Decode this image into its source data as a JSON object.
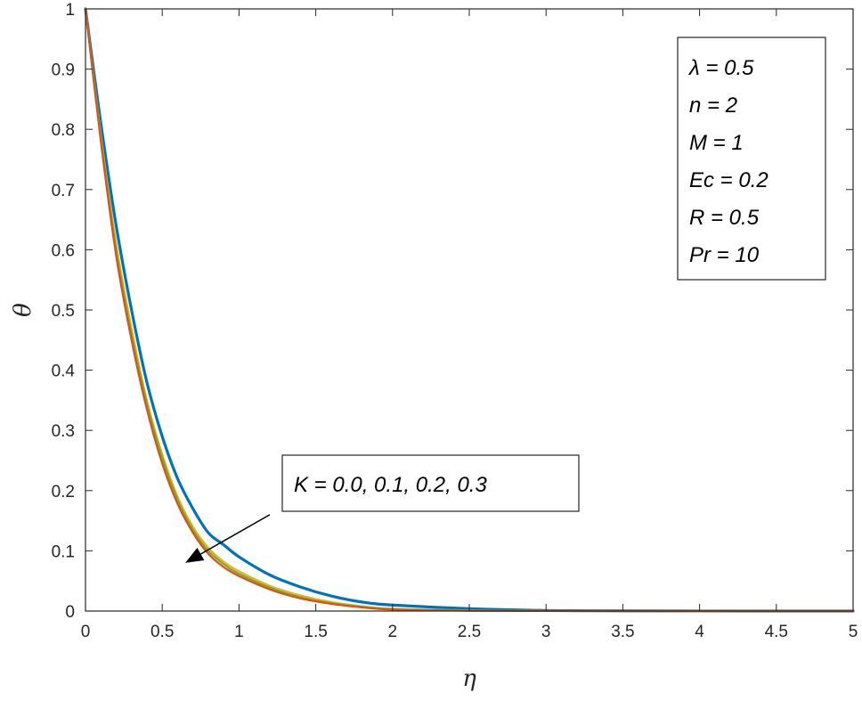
{
  "chart_data": {
    "type": "line",
    "xlabel": "η",
    "ylabel": "θ",
    "xlim": [
      0,
      5
    ],
    "ylim": [
      0,
      1
    ],
    "xticks": [
      0,
      0.5,
      1,
      1.5,
      2,
      2.5,
      3,
      3.5,
      4,
      4.5,
      5
    ],
    "yticks": [
      0,
      0.1,
      0.2,
      0.3,
      0.4,
      0.5,
      0.6,
      0.7,
      0.8,
      0.9,
      1
    ],
    "grid": false,
    "parameters_box": {
      "position": "top-right",
      "lines": [
        "λ = 0.5",
        "n = 2",
        "M = 1",
        "Ec = 0.2",
        "R = 0.5",
        "Pr = 10"
      ]
    },
    "annotation": {
      "text": "K = 0.0, 0.1, 0.2, 0.3",
      "arrow_from": [
        1.2,
        0.16
      ],
      "arrow_to": [
        0.65,
        0.08
      ]
    },
    "series": [
      {
        "color": "#0072BD",
        "x": [
          0,
          0.1,
          0.2,
          0.3,
          0.4,
          0.5,
          0.6,
          0.7,
          0.8,
          0.9,
          1.0,
          1.2,
          1.4,
          1.6,
          1.8,
          2.0,
          2.5,
          3.0,
          3.5,
          4.0,
          4.5,
          5.0
        ],
        "y": [
          1.0,
          0.81,
          0.64,
          0.5,
          0.38,
          0.29,
          0.22,
          0.17,
          0.13,
          0.11,
          0.09,
          0.06,
          0.04,
          0.025,
          0.015,
          0.01,
          0.004,
          0.001,
          0.0004,
          0.0001,
          3e-05,
          0.0
        ]
      },
      {
        "color": "#EDB120",
        "x": [
          0,
          0.1,
          0.2,
          0.3,
          0.4,
          0.5,
          0.6,
          0.7,
          0.8,
          0.9,
          1.0,
          1.2,
          1.4,
          1.6,
          1.8,
          2.0,
          2.5,
          3.0,
          3.5,
          4.0,
          4.5,
          5.0
        ],
        "y": [
          1.0,
          0.79,
          0.61,
          0.47,
          0.35,
          0.26,
          0.19,
          0.14,
          0.105,
          0.082,
          0.066,
          0.042,
          0.026,
          0.015,
          0.008,
          0.004,
          0.001,
          0.0003,
          0.0001,
          3e-05,
          1e-05,
          0.0
        ]
      },
      {
        "color": "#77AC30",
        "x": [
          0,
          0.1,
          0.2,
          0.3,
          0.4,
          0.5,
          0.6,
          0.7,
          0.8,
          0.9,
          1.0,
          1.2,
          1.4,
          1.6,
          1.8,
          2.0,
          2.5,
          3.0,
          3.5,
          4.0,
          4.5,
          5.0
        ],
        "y": [
          1.0,
          0.785,
          0.6,
          0.46,
          0.345,
          0.255,
          0.185,
          0.135,
          0.1,
          0.078,
          0.062,
          0.039,
          0.023,
          0.013,
          0.007,
          0.003,
          0.0008,
          0.0002,
          0.0001,
          2e-05,
          1e-05,
          0.0
        ]
      },
      {
        "color": "#D95319",
        "x": [
          0,
          0.1,
          0.2,
          0.3,
          0.4,
          0.5,
          0.6,
          0.7,
          0.8,
          0.9,
          1.0,
          1.2,
          1.4,
          1.6,
          1.8,
          2.0,
          2.5,
          3.0,
          3.5,
          4.0,
          4.5,
          5.0
        ],
        "y": [
          1.0,
          0.78,
          0.59,
          0.45,
          0.335,
          0.245,
          0.178,
          0.13,
          0.095,
          0.073,
          0.058,
          0.036,
          0.021,
          0.012,
          0.006,
          0.0025,
          0.0006,
          0.0002,
          5e-05,
          1e-05,
          0.0,
          0.0
        ]
      }
    ]
  }
}
